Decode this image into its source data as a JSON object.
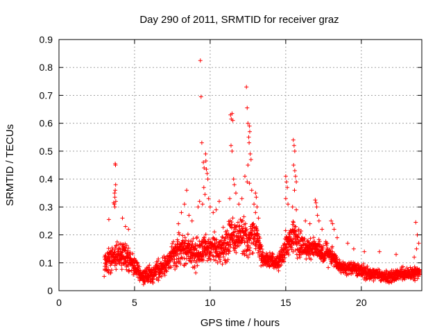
{
  "chart_data": {
    "type": "scatter",
    "title": "Day 290 of 2011, SRMTID for receiver graz",
    "xlabel": "GPS time / hours",
    "ylabel": "SRMTID / TECUs",
    "xlim": [
      0,
      24
    ],
    "ylim": [
      0,
      0.9
    ],
    "xticks": [
      "0",
      "5",
      "10",
      "15",
      "20"
    ],
    "yticks": [
      "0",
      "0.1",
      "0.2",
      "0.3",
      "0.4",
      "0.5",
      "0.6",
      "0.7",
      "0.8",
      "0.9"
    ],
    "grid": true,
    "marker": "plus",
    "color": "#ff0000",
    "envelope": {
      "hours": [
        3.0,
        3.5,
        4.0,
        4.5,
        5.0,
        5.5,
        6.0,
        6.5,
        7.0,
        7.5,
        8.0,
        8.5,
        9.0,
        9.5,
        10.0,
        10.5,
        11.0,
        11.5,
        12.0,
        12.5,
        13.0,
        13.5,
        14.0,
        14.5,
        15.0,
        15.5,
        16.0,
        16.5,
        17.0,
        17.5,
        18.0,
        18.5,
        19.0,
        19.5,
        20.0,
        20.5,
        21.0,
        21.5,
        22.0,
        22.5,
        23.0,
        23.5,
        23.9
      ],
      "centre": [
        0.1,
        0.12,
        0.13,
        0.12,
        0.09,
        0.05,
        0.06,
        0.07,
        0.09,
        0.12,
        0.15,
        0.15,
        0.13,
        0.15,
        0.16,
        0.14,
        0.16,
        0.2,
        0.19,
        0.18,
        0.2,
        0.11,
        0.11,
        0.1,
        0.16,
        0.19,
        0.16,
        0.15,
        0.16,
        0.13,
        0.13,
        0.09,
        0.08,
        0.08,
        0.07,
        0.06,
        0.06,
        0.05,
        0.05,
        0.06,
        0.06,
        0.06,
        0.07
      ],
      "spread": [
        0.06,
        0.07,
        0.07,
        0.06,
        0.05,
        0.04,
        0.04,
        0.05,
        0.05,
        0.06,
        0.07,
        0.07,
        0.08,
        0.08,
        0.07,
        0.07,
        0.08,
        0.09,
        0.09,
        0.09,
        0.09,
        0.04,
        0.04,
        0.04,
        0.07,
        0.08,
        0.06,
        0.05,
        0.05,
        0.05,
        0.05,
        0.03,
        0.03,
        0.03,
        0.03,
        0.03,
        0.03,
        0.03,
        0.03,
        0.03,
        0.03,
        0.03,
        0.03
      ]
    },
    "outliers": [
      [
        3.72,
        0.455
      ],
      [
        3.74,
        0.45
      ],
      [
        3.75,
        0.38
      ],
      [
        3.72,
        0.36
      ],
      [
        3.68,
        0.35
      ],
      [
        3.66,
        0.31
      ],
      [
        3.7,
        0.3
      ],
      [
        3.76,
        0.32
      ],
      [
        3.62,
        0.315
      ],
      [
        3.7,
        0.335
      ],
      [
        4.2,
        0.26
      ],
      [
        4.4,
        0.23
      ],
      [
        4.6,
        0.22
      ],
      [
        3.3,
        0.255
      ],
      [
        7.9,
        0.24
      ],
      [
        8.1,
        0.28
      ],
      [
        8.3,
        0.31
      ],
      [
        8.45,
        0.36
      ],
      [
        8.6,
        0.27
      ],
      [
        8.8,
        0.25
      ],
      [
        9.2,
        0.3
      ],
      [
        9.3,
        0.32
      ],
      [
        9.35,
        0.825
      ],
      [
        9.4,
        0.695
      ],
      [
        9.45,
        0.53
      ],
      [
        9.55,
        0.46
      ],
      [
        9.6,
        0.44
      ],
      [
        9.7,
        0.49
      ],
      [
        9.72,
        0.465
      ],
      [
        9.75,
        0.435
      ],
      [
        9.8,
        0.42
      ],
      [
        9.85,
        0.4
      ],
      [
        9.58,
        0.37
      ],
      [
        9.66,
        0.345
      ],
      [
        9.5,
        0.31
      ],
      [
        9.9,
        0.33
      ],
      [
        10.0,
        0.3
      ],
      [
        10.2,
        0.28
      ],
      [
        10.4,
        0.29
      ],
      [
        10.6,
        0.32
      ],
      [
        11.35,
        0.63
      ],
      [
        11.4,
        0.615
      ],
      [
        11.45,
        0.635
      ],
      [
        11.5,
        0.61
      ],
      [
        11.38,
        0.52
      ],
      [
        11.45,
        0.5
      ],
      [
        11.55,
        0.4
      ],
      [
        11.6,
        0.38
      ],
      [
        11.7,
        0.35
      ],
      [
        11.3,
        0.33
      ],
      [
        11.9,
        0.31
      ],
      [
        12.1,
        0.33
      ],
      [
        12.3,
        0.41
      ],
      [
        12.4,
        0.73
      ],
      [
        12.45,
        0.655
      ],
      [
        12.5,
        0.6
      ],
      [
        12.55,
        0.55
      ],
      [
        12.6,
        0.59
      ],
      [
        12.62,
        0.57
      ],
      [
        12.58,
        0.53
      ],
      [
        12.65,
        0.49
      ],
      [
        12.7,
        0.47
      ],
      [
        12.5,
        0.45
      ],
      [
        12.45,
        0.39
      ],
      [
        12.6,
        0.385
      ],
      [
        12.75,
        0.36
      ],
      [
        12.9,
        0.31
      ],
      [
        13.0,
        0.35
      ],
      [
        13.05,
        0.335
      ],
      [
        13.1,
        0.3
      ],
      [
        13.0,
        0.28
      ],
      [
        13.2,
        0.26
      ],
      [
        15.0,
        0.41
      ],
      [
        15.05,
        0.39
      ],
      [
        15.1,
        0.37
      ],
      [
        15.0,
        0.33
      ],
      [
        15.15,
        0.31
      ],
      [
        15.5,
        0.54
      ],
      [
        15.55,
        0.52
      ],
      [
        15.6,
        0.5
      ],
      [
        15.52,
        0.45
      ],
      [
        15.6,
        0.43
      ],
      [
        15.65,
        0.41
      ],
      [
        15.7,
        0.39
      ],
      [
        15.58,
        0.36
      ],
      [
        15.45,
        0.3
      ],
      [
        15.7,
        0.29
      ],
      [
        16.3,
        0.25
      ],
      [
        16.6,
        0.24
      ],
      [
        16.95,
        0.325
      ],
      [
        17.0,
        0.315
      ],
      [
        17.05,
        0.3
      ],
      [
        17.1,
        0.27
      ],
      [
        17.2,
        0.25
      ],
      [
        17.4,
        0.22
      ],
      [
        18.0,
        0.25
      ],
      [
        18.1,
        0.24
      ],
      [
        18.2,
        0.22
      ],
      [
        18.4,
        0.19
      ],
      [
        19.1,
        0.17
      ],
      [
        19.5,
        0.15
      ],
      [
        20.2,
        0.14
      ],
      [
        21.2,
        0.14
      ],
      [
        22.3,
        0.13
      ],
      [
        23.6,
        0.245
      ],
      [
        23.7,
        0.2
      ],
      [
        23.8,
        0.17
      ],
      [
        23.65,
        0.15
      ],
      [
        23.5,
        0.12
      ]
    ]
  }
}
